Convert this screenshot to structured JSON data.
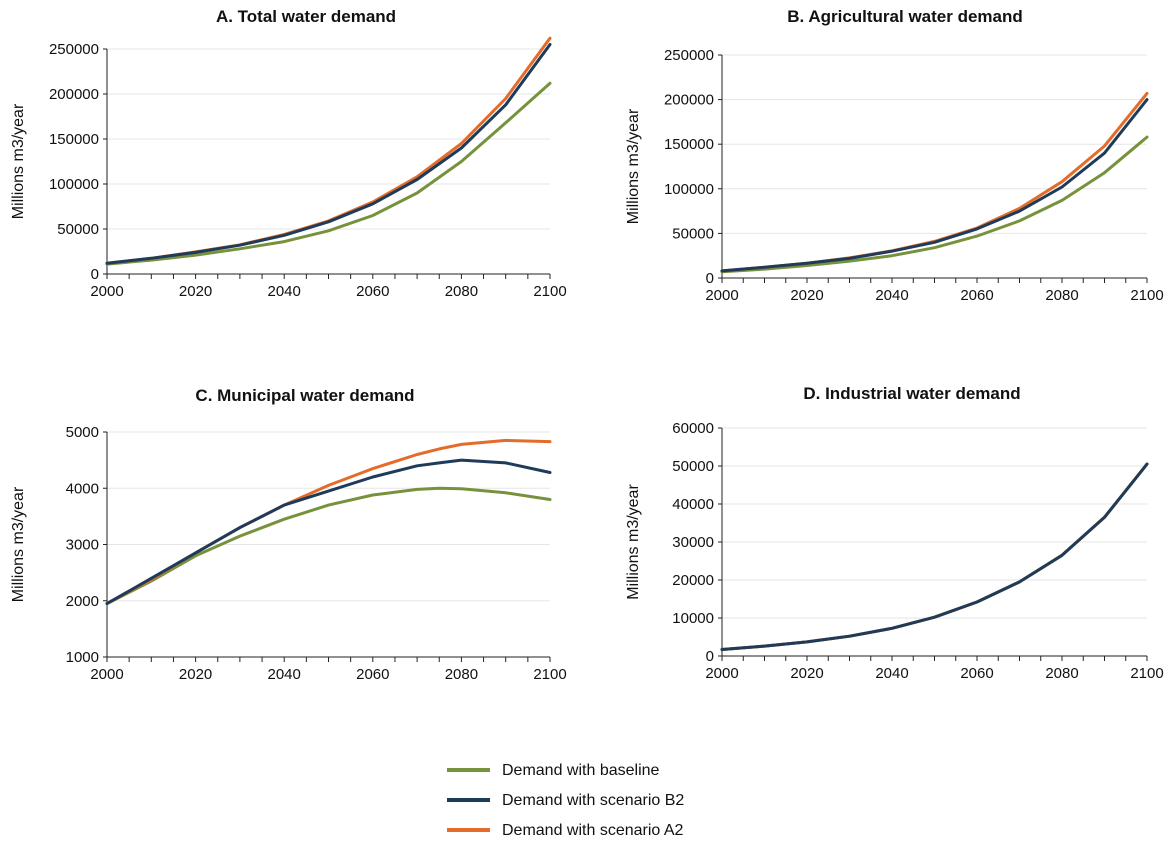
{
  "colors": {
    "baseline": "#76923c",
    "b2": "#1f3b5a",
    "a2": "#e46c2a"
  },
  "legend": [
    {
      "key": "baseline",
      "label": "Demand with baseline"
    },
    {
      "key": "b2",
      "label": "Demand with scenario B2"
    },
    {
      "key": "a2",
      "label": "Demand with scenario A2"
    }
  ],
  "chart_data": [
    {
      "type": "line",
      "title": "A. Total water demand",
      "ylabel": "Millions m3/year",
      "xlim": [
        2000,
        2100
      ],
      "ylim": [
        0,
        250000
      ],
      "xticks": [
        2000,
        2020,
        2040,
        2060,
        2080,
        2100
      ],
      "yticks": [
        0,
        50000,
        100000,
        150000,
        200000,
        250000
      ],
      "x": [
        2000,
        2010,
        2020,
        2030,
        2040,
        2050,
        2060,
        2070,
        2080,
        2090,
        2100
      ],
      "series": [
        {
          "key": "baseline",
          "name": "Demand with baseline",
          "values": [
            11000,
            15500,
            21000,
            28000,
            36000,
            48000,
            65000,
            90000,
            125000,
            168000,
            212000
          ]
        },
        {
          "key": "b2",
          "name": "Demand with scenario B2",
          "values": [
            12000,
            17500,
            24000,
            32000,
            43000,
            58000,
            78000,
            105000,
            140000,
            188000,
            255000
          ]
        },
        {
          "key": "a2",
          "name": "Demand with scenario A2",
          "values": [
            12000,
            17500,
            24500,
            32500,
            44000,
            59000,
            80000,
            108000,
            145000,
            195000,
            262000
          ]
        }
      ]
    },
    {
      "type": "line",
      "title": "B. Agricultural water demand",
      "ylabel": "Millions m3/year",
      "xlim": [
        2000,
        2100
      ],
      "ylim": [
        0,
        250000
      ],
      "xticks": [
        2000,
        2020,
        2040,
        2060,
        2080,
        2100
      ],
      "yticks": [
        0,
        50000,
        100000,
        150000,
        200000,
        250000
      ],
      "x": [
        2000,
        2010,
        2020,
        2030,
        2040,
        2050,
        2060,
        2070,
        2080,
        2090,
        2100
      ],
      "series": [
        {
          "key": "baseline",
          "name": "Demand with baseline",
          "values": [
            7000,
            10000,
            14000,
            19000,
            25000,
            34000,
            47000,
            64000,
            87000,
            118000,
            158000
          ]
        },
        {
          "key": "b2",
          "name": "Demand with scenario B2",
          "values": [
            8000,
            12000,
            16500,
            22000,
            30000,
            40000,
            55000,
            75000,
            102000,
            140000,
            200000
          ]
        },
        {
          "key": "a2",
          "name": "Demand with scenario A2",
          "values": [
            8000,
            12000,
            16500,
            22500,
            30500,
            41000,
            56000,
            78000,
            108000,
            148000,
            207000
          ]
        }
      ]
    },
    {
      "type": "line",
      "title": "C. Municipal water demand",
      "ylabel": "Millions m3/year",
      "xlim": [
        2000,
        2100
      ],
      "ylim": [
        1000,
        5000
      ],
      "xticks": [
        2000,
        2020,
        2040,
        2060,
        2080,
        2100
      ],
      "yticks": [
        1000,
        2000,
        3000,
        4000,
        5000
      ],
      "x": [
        2000,
        2010,
        2020,
        2030,
        2040,
        2050,
        2060,
        2070,
        2075,
        2080,
        2090,
        2100
      ],
      "series": [
        {
          "key": "baseline",
          "name": "Demand with baseline",
          "values": [
            1950,
            2350,
            2800,
            3150,
            3450,
            3700,
            3880,
            3980,
            4000,
            3990,
            3920,
            3800
          ]
        },
        {
          "key": "b2",
          "name": "Demand with scenario B2",
          "values": [
            1950,
            2400,
            2850,
            3300,
            3700,
            3950,
            4200,
            4400,
            4450,
            4500,
            4450,
            4280
          ]
        },
        {
          "key": "a2",
          "name": "Demand with scenario A2",
          "values": [
            1950,
            2380,
            2850,
            3300,
            3700,
            4050,
            4350,
            4600,
            4700,
            4780,
            4850,
            4830
          ]
        }
      ]
    },
    {
      "type": "line",
      "title": "D. Industrial water demand",
      "ylabel": "Millions m3/year",
      "xlim": [
        2000,
        2100
      ],
      "ylim": [
        0,
        60000
      ],
      "xticks": [
        2000,
        2020,
        2040,
        2060,
        2080,
        2100
      ],
      "yticks": [
        0,
        10000,
        20000,
        30000,
        40000,
        50000,
        60000
      ],
      "x": [
        2000,
        2010,
        2020,
        2030,
        2040,
        2050,
        2060,
        2070,
        2080,
        2090,
        2100
      ],
      "series": [
        {
          "key": "baseline",
          "name": "Demand with baseline",
          "values": [
            1700,
            2600,
            3700,
            5200,
            7300,
            10200,
            14200,
            19500,
            26500,
            36500,
            50500
          ]
        },
        {
          "key": "b2",
          "name": "Demand with scenario B2",
          "values": [
            1700,
            2600,
            3700,
            5200,
            7300,
            10200,
            14200,
            19500,
            26500,
            36500,
            50500
          ]
        },
        {
          "key": "a2",
          "name": "Demand with scenario A2",
          "values": [
            1700,
            2600,
            3700,
            5200,
            7300,
            10200,
            14200,
            19500,
            26500,
            36500,
            50500
          ]
        }
      ]
    }
  ]
}
